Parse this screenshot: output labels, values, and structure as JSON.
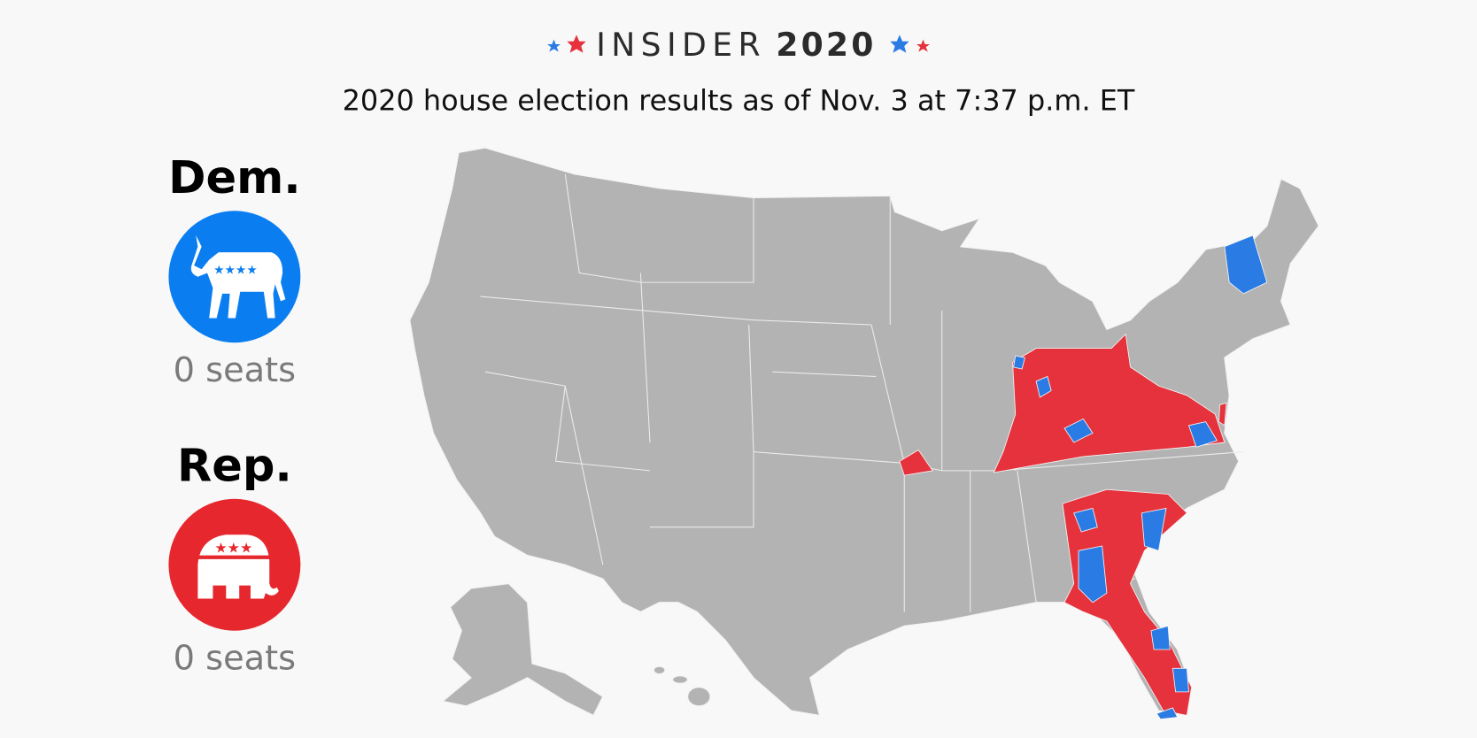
{
  "header": {
    "brand": "INSIDER",
    "year": "2020",
    "subtitle": "2020 house election results as of Nov. 3 at 7:37 p.m. ET"
  },
  "parties": [
    {
      "name": "Dem.",
      "seats": "0 seats"
    },
    {
      "name": "Rep.",
      "seats": "0 seats"
    }
  ]
}
